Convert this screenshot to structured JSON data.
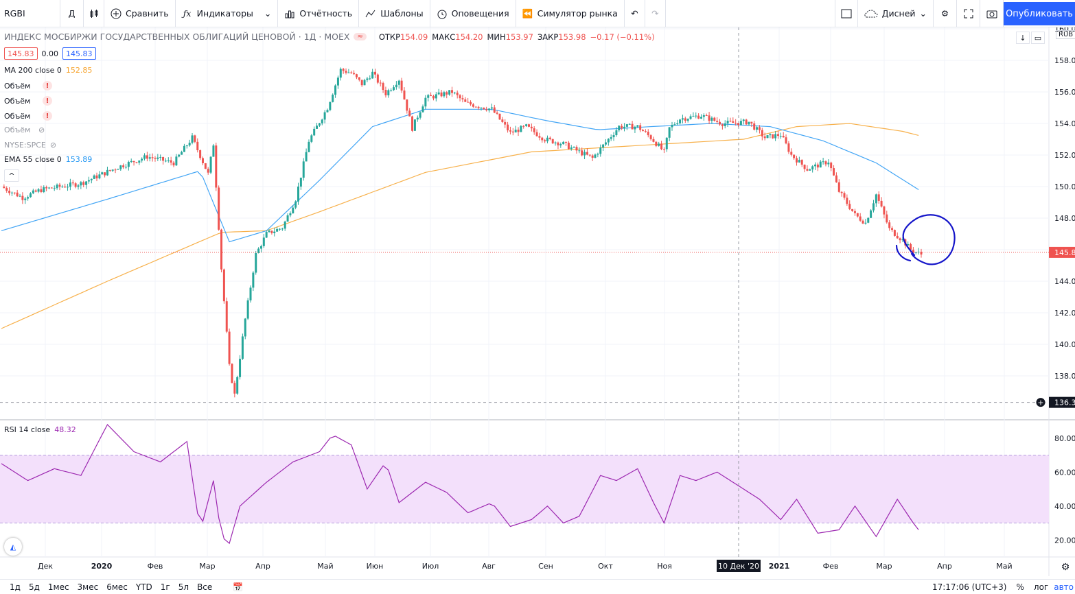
{
  "toolbar": {
    "symbol": "RGBI",
    "interval": "Д",
    "compare": "Сравнить",
    "indicators": "Индикаторы",
    "financials": "Отчётность",
    "templates": "Шаблоны",
    "alerts": "Оповещения",
    "replay": "Симулятор рынка",
    "layout_name": "Дисней",
    "publish": "Опубликовать"
  },
  "header": {
    "title": "ИНДЕКС МОСБИРЖИ ГОСУДАРСТВЕННЫХ ОБЛИГАЦИЙ ЦЕНОВОЙ · 1Д · MOEX",
    "open_label": "ОТКР",
    "open": "154.09",
    "high_label": "МАКС",
    "high": "154.20",
    "low_label": "МИН",
    "low": "153.97",
    "close_label": "ЗАКР",
    "close": "153.98",
    "change": "−0.17 (−0.11%)",
    "bid": "145.83",
    "spread": "0.00",
    "ask": "145.83",
    "currency": "RUB"
  },
  "legends": {
    "ma200_label": "MA 200 close 0",
    "ma200_value": "152.85",
    "vol1": "Объём",
    "vol2": "Объём",
    "vol3": "Объём",
    "vol4": "Объём",
    "spce": "NYSE:SPCE",
    "ema55_label": "EMA 55 close 0",
    "ema55_value": "153.89",
    "rsi_label": "RSI 14 close",
    "rsi_value": "48.32"
  },
  "colors": {
    "up": "#26a69a",
    "down": "#ef5350",
    "ma200": "#f7b04a",
    "ema55": "#42a5f5",
    "rsi": "#9c27b0",
    "rsi_band": "#f3e0fb",
    "annotation": "#1515c9",
    "accent": "#2962ff"
  },
  "price_scale": {
    "labels": [
      "160.00",
      "158.00",
      "156.00",
      "154.00",
      "152.00",
      "150.00",
      "148.00",
      "146.00",
      "144.00",
      "142.00",
      "140.00",
      "138.00"
    ],
    "last_price": "145.83",
    "crosshair_price": "136.32"
  },
  "rsi_scale": {
    "labels": [
      "80.00",
      "60.00",
      "40.00",
      "20.00"
    ]
  },
  "time_scale": {
    "labels": [
      "Дек",
      "2020",
      "Фев",
      "Мар",
      "Апр",
      "Май",
      "Июн",
      "Июл",
      "Авг",
      "Сен",
      "Окт",
      "Ноя",
      "2021",
      "Фев",
      "Мар",
      "Апр",
      "Май"
    ],
    "crosshair_date": "10 Дек '20"
  },
  "bottom": {
    "ranges": [
      "1д",
      "5д",
      "1мес",
      "3мес",
      "6мес",
      "YTD",
      "1г",
      "5л",
      "Все"
    ],
    "time": "17:17:06 (UTC+3)",
    "percent": "%",
    "log": "лог",
    "auto": "авто"
  },
  "chart_data": {
    "type": "candlestick",
    "symbol": "RGBI",
    "interval": "1D",
    "ylim": [
      136,
      160
    ],
    "rsi_ylim": [
      10,
      90
    ],
    "rsi_bands": [
      30,
      70
    ],
    "price_path": [
      [
        0,
        150.0
      ],
      [
        8,
        149.3
      ],
      [
        15,
        149.8
      ],
      [
        30,
        150.2
      ],
      [
        45,
        151.3
      ],
      [
        55,
        151.9
      ],
      [
        65,
        151.5
      ],
      [
        72,
        153.1
      ],
      [
        78,
        150.8
      ],
      [
        80,
        152.7
      ],
      [
        83,
        144.8
      ],
      [
        86,
        138.6
      ],
      [
        88,
        136.8
      ],
      [
        92,
        141.6
      ],
      [
        96,
        145.7
      ],
      [
        100,
        147.0
      ],
      [
        106,
        147.4
      ],
      [
        111,
        149.2
      ],
      [
        116,
        152.9
      ],
      [
        123,
        155.0
      ],
      [
        128,
        157.4
      ],
      [
        132,
        157.2
      ],
      [
        136,
        156.5
      ],
      [
        140,
        157.2
      ],
      [
        145,
        155.9
      ],
      [
        150,
        156.8
      ],
      [
        155,
        153.7
      ],
      [
        160,
        155.6
      ],
      [
        170,
        156.0
      ],
      [
        175,
        155.3
      ],
      [
        185,
        154.9
      ],
      [
        192,
        153.4
      ],
      [
        198,
        153.8
      ],
      [
        205,
        153.0
      ],
      [
        212,
        152.7
      ],
      [
        218,
        152.2
      ],
      [
        223,
        151.8
      ],
      [
        228,
        152.8
      ],
      [
        233,
        153.8
      ],
      [
        240,
        153.8
      ],
      [
        245,
        153.1
      ],
      [
        250,
        152.2
      ],
      [
        252,
        153.7
      ],
      [
        256,
        154.3
      ],
      [
        264,
        154.5
      ],
      [
        272,
        154.0
      ],
      [
        282,
        154.1
      ],
      [
        288,
        153.1
      ],
      [
        294,
        153.3
      ],
      [
        298,
        152.0
      ],
      [
        304,
        151.1
      ],
      [
        312,
        151.6
      ],
      [
        316,
        149.7
      ],
      [
        322,
        148.2
      ],
      [
        326,
        147.7
      ],
      [
        330,
        149.5
      ],
      [
        335,
        147.3
      ],
      [
        340,
        146.6
      ],
      [
        343,
        146.0
      ],
      [
        347,
        145.7
      ]
    ],
    "ma200_path": [
      [
        0,
        141.0
      ],
      [
        40,
        144.0
      ],
      [
        83,
        147.1
      ],
      [
        100,
        147.2
      ],
      [
        120,
        148.4
      ],
      [
        160,
        150.9
      ],
      [
        200,
        152.2
      ],
      [
        240,
        152.6
      ],
      [
        280,
        153.0
      ],
      [
        300,
        153.8
      ],
      [
        320,
        154.0
      ],
      [
        340,
        153.5
      ],
      [
        347,
        153.2
      ]
    ],
    "ema55_path": [
      [
        0,
        147.2
      ],
      [
        40,
        149.2
      ],
      [
        75,
        151.0
      ],
      [
        86,
        146.5
      ],
      [
        100,
        147.2
      ],
      [
        120,
        150.4
      ],
      [
        140,
        153.8
      ],
      [
        160,
        154.9
      ],
      [
        185,
        154.9
      ],
      [
        205,
        154.2
      ],
      [
        225,
        153.6
      ],
      [
        245,
        153.8
      ],
      [
        268,
        154.0
      ],
      [
        290,
        153.8
      ],
      [
        310,
        152.9
      ],
      [
        330,
        151.5
      ],
      [
        347,
        149.7
      ]
    ],
    "rsi_path": [
      [
        0,
        65
      ],
      [
        10,
        55
      ],
      [
        20,
        62
      ],
      [
        30,
        58
      ],
      [
        40,
        88
      ],
      [
        50,
        72
      ],
      [
        60,
        66
      ],
      [
        70,
        78
      ],
      [
        75,
        25
      ],
      [
        80,
        55
      ],
      [
        83,
        22
      ],
      [
        86,
        18
      ],
      [
        90,
        40
      ],
      [
        100,
        54
      ],
      [
        110,
        66
      ],
      [
        120,
        72
      ],
      [
        125,
        82
      ],
      [
        132,
        76
      ],
      [
        138,
        50
      ],
      [
        145,
        66
      ],
      [
        150,
        42
      ],
      [
        160,
        54
      ],
      [
        168,
        48
      ],
      [
        176,
        36
      ],
      [
        185,
        42
      ],
      [
        192,
        28
      ],
      [
        200,
        32
      ],
      [
        206,
        40
      ],
      [
        212,
        30
      ],
      [
        218,
        34
      ],
      [
        226,
        58
      ],
      [
        232,
        55
      ],
      [
        240,
        62
      ],
      [
        246,
        42
      ],
      [
        250,
        30
      ],
      [
        256,
        58
      ],
      [
        262,
        55
      ],
      [
        270,
        60
      ],
      [
        278,
        52
      ],
      [
        286,
        44
      ],
      [
        294,
        32
      ],
      [
        300,
        44
      ],
      [
        308,
        24
      ],
      [
        316,
        26
      ],
      [
        322,
        40
      ],
      [
        330,
        22
      ],
      [
        338,
        44
      ],
      [
        344,
        30
      ],
      [
        347,
        24
      ]
    ]
  }
}
